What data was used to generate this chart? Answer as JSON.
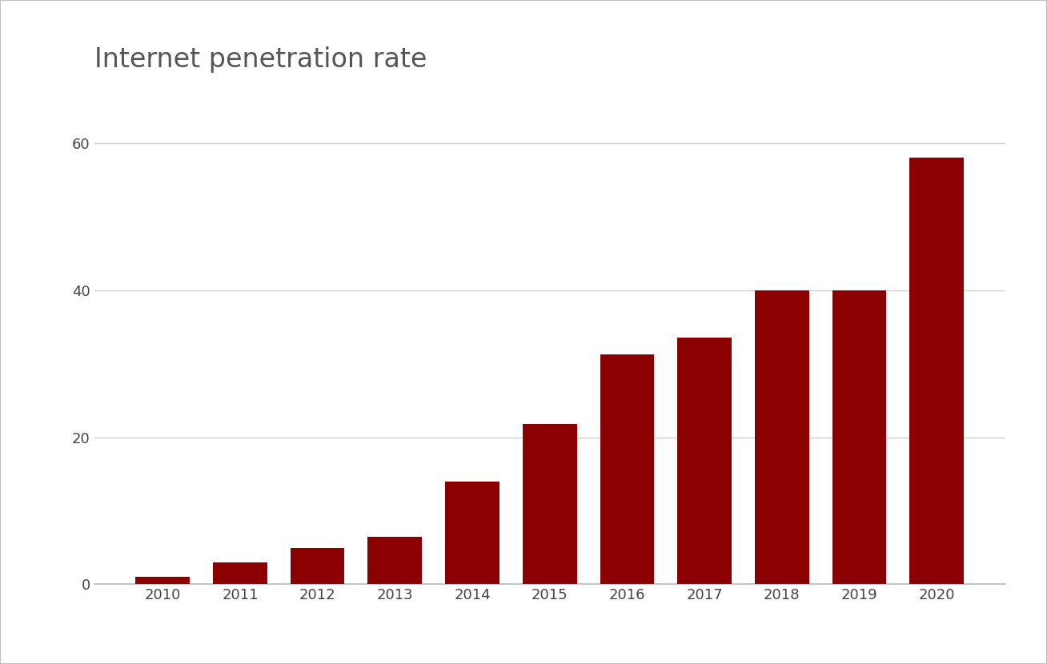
{
  "title": "Internet penetration rate",
  "categories": [
    "2010",
    "2011",
    "2012",
    "2013",
    "2014",
    "2015",
    "2016",
    "2017",
    "2018",
    "2019",
    "2020"
  ],
  "values": [
    1.0,
    3.0,
    4.9,
    6.5,
    14.0,
    21.8,
    31.3,
    33.5,
    40.0,
    40.0,
    58.0
  ],
  "bar_color": "#8B0000",
  "background_color": "#ffffff",
  "fig_background_color": "#ffffff",
  "title_fontsize": 24,
  "tick_fontsize": 13,
  "yticks": [
    0,
    20,
    40,
    60
  ],
  "ylim": [
    0,
    65
  ],
  "grid_color": "#d0d0d0",
  "bar_width": 0.7,
  "spine_color": "#bbbbbb",
  "frame_color": "#c0c0c0",
  "title_color": "#555555",
  "tick_color": "#444444"
}
